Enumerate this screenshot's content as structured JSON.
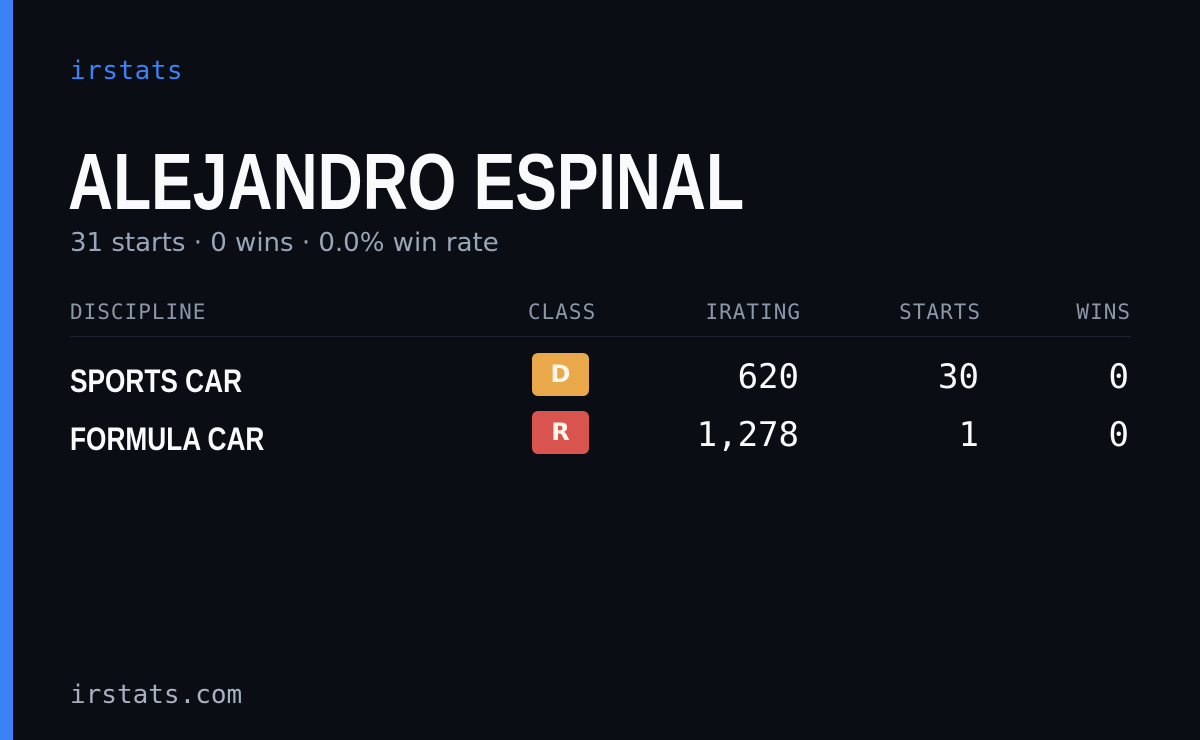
{
  "brand": "irstats",
  "driver": {
    "name": "ALEJANDRO ESPINAL",
    "summary": "31 starts · 0 wins · 0.0% win rate"
  },
  "table": {
    "headers": {
      "discipline": "DISCIPLINE",
      "class": "CLASS",
      "irating": "IRATING",
      "starts": "STARTS",
      "wins": "WINS"
    },
    "rows": [
      {
        "discipline": "SPORTS CAR",
        "class": "D",
        "class_color": "#e9a84a",
        "irating": "620",
        "starts": "30",
        "wins": "0"
      },
      {
        "discipline": "FORMULA CAR",
        "class": "R",
        "class_color": "#d9534f",
        "irating": "1,278",
        "starts": "1",
        "wins": "0"
      }
    ]
  },
  "footer": "irstats.com",
  "colors": {
    "background": "#0a0d14",
    "accent": "#3b82f6"
  }
}
